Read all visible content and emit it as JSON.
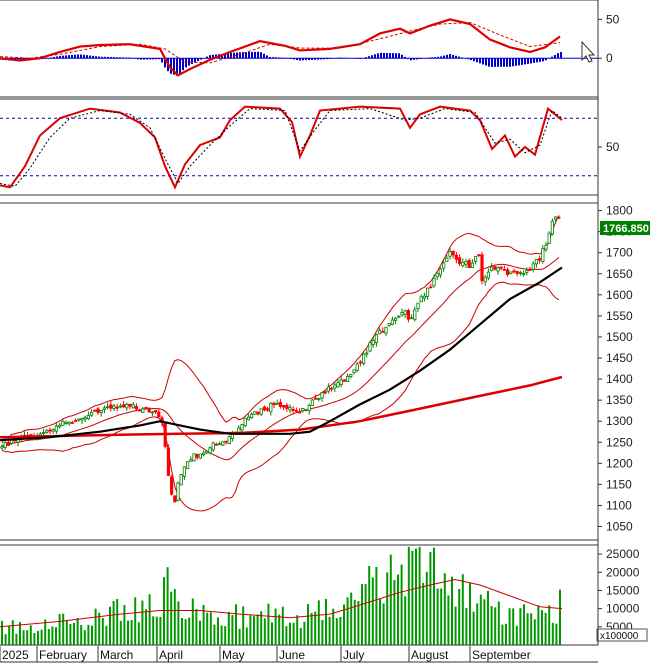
{
  "chart_data": {
    "type": "candlestick-with-indicators",
    "colors": {
      "up": "#008000",
      "down": "#ff0000",
      "ma_short": "#000000",
      "ma_long": "#dd0000",
      "band": "#cc0000",
      "macd": "#dd0000",
      "histogram": "#0000cc",
      "dashed": "#0000cc",
      "volume": "#009900",
      "label_bg": "#008000"
    },
    "x_axis": {
      "labels": [
        "2025",
        "February",
        "March",
        "April",
        "May",
        "June",
        "July",
        "August",
        "September"
      ]
    },
    "macd_panel": {
      "ticks": [
        50,
        0
      ],
      "ylim": [
        -50,
        75
      ]
    },
    "stoch_panel": {
      "ticks": [
        50
      ],
      "ylim": [
        0,
        100
      ],
      "reference_lines": [
        20,
        80
      ]
    },
    "price_panel": {
      "ticks": [
        1800,
        1750,
        1700,
        1650,
        1600,
        1550,
        1500,
        1450,
        1400,
        1350,
        1300,
        1250,
        1200,
        1150,
        1100,
        1050
      ],
      "ylim": [
        1018,
        1818
      ],
      "last_value": "1766.850",
      "anchors": [
        [
          0,
          1245
        ],
        [
          10,
          1250
        ],
        [
          20,
          1258
        ],
        [
          40,
          1270
        ],
        [
          60,
          1290
        ],
        [
          80,
          1310
        ],
        [
          95,
          1325
        ],
        [
          110,
          1335
        ],
        [
          125,
          1340
        ],
        [
          140,
          1330
        ],
        [
          155,
          1320
        ],
        [
          163,
          1300
        ],
        [
          166,
          1210
        ],
        [
          170,
          1140
        ],
        [
          175,
          1105
        ],
        [
          180,
          1175
        ],
        [
          190,
          1210
        ],
        [
          200,
          1225
        ],
        [
          210,
          1240
        ],
        [
          220,
          1250
        ],
        [
          230,
          1260
        ],
        [
          245,
          1300
        ],
        [
          260,
          1325
        ],
        [
          275,
          1340
        ],
        [
          290,
          1330
        ],
        [
          300,
          1320
        ],
        [
          310,
          1340
        ],
        [
          320,
          1360
        ],
        [
          330,
          1380
        ],
        [
          345,
          1400
        ],
        [
          360,
          1440
        ],
        [
          370,
          1480
        ],
        [
          380,
          1510
        ],
        [
          395,
          1550
        ],
        [
          405,
          1560
        ],
        [
          410,
          1540
        ],
        [
          420,
          1590
        ],
        [
          430,
          1620
        ],
        [
          440,
          1660
        ],
        [
          450,
          1700
        ],
        [
          460,
          1680
        ],
        [
          470,
          1670
        ],
        [
          478,
          1700
        ],
        [
          482,
          1640
        ],
        [
          490,
          1660
        ],
        [
          500,
          1670
        ],
        [
          510,
          1650
        ],
        [
          520,
          1650
        ],
        [
          530,
          1660
        ],
        [
          540,
          1690
        ],
        [
          548,
          1730
        ],
        [
          553,
          1780
        ],
        [
          557,
          1790
        ],
        [
          560,
          1768
        ]
      ],
      "ma_long": [
        [
          0,
          1262
        ],
        [
          60,
          1265
        ],
        [
          120,
          1268
        ],
        [
          180,
          1270
        ],
        [
          240,
          1272
        ],
        [
          300,
          1280
        ],
        [
          360,
          1300
        ],
        [
          420,
          1330
        ],
        [
          480,
          1360
        ],
        [
          530,
          1385
        ],
        [
          562,
          1405
        ]
      ],
      "ma_short": [
        [
          0,
          1255
        ],
        [
          50,
          1262
        ],
        [
          100,
          1275
        ],
        [
          140,
          1290
        ],
        [
          160,
          1300
        ],
        [
          180,
          1290
        ],
        [
          200,
          1280
        ],
        [
          230,
          1270
        ],
        [
          260,
          1270
        ],
        [
          290,
          1270
        ],
        [
          310,
          1275
        ],
        [
          330,
          1300
        ],
        [
          360,
          1340
        ],
        [
          390,
          1375
        ],
        [
          420,
          1420
        ],
        [
          450,
          1470
        ],
        [
          480,
          1530
        ],
        [
          510,
          1590
        ],
        [
          540,
          1630
        ],
        [
          562,
          1665
        ]
      ]
    },
    "volume_panel": {
      "ticks": [
        25000,
        20000,
        15000,
        10000,
        5000
      ],
      "ylim": [
        0,
        27500
      ],
      "multiplier_label": "x100000",
      "anchors": [
        [
          0,
          4500
        ],
        [
          40,
          6000
        ],
        [
          80,
          7000
        ],
        [
          120,
          9000
        ],
        [
          160,
          10000
        ],
        [
          166,
          20000
        ],
        [
          172,
          17000
        ],
        [
          180,
          12000
        ],
        [
          200,
          9000
        ],
        [
          230,
          8000
        ],
        [
          260,
          8000
        ],
        [
          290,
          7500
        ],
        [
          330,
          9000
        ],
        [
          360,
          15000
        ],
        [
          380,
          17000
        ],
        [
          400,
          21000
        ],
        [
          420,
          20000
        ],
        [
          440,
          18000
        ],
        [
          460,
          16000
        ],
        [
          480,
          11000
        ],
        [
          500,
          9500
        ],
        [
          520,
          7500
        ],
        [
          540,
          9000
        ],
        [
          560,
          11000
        ]
      ],
      "ma": [
        [
          0,
          5000
        ],
        [
          60,
          6500
        ],
        [
          120,
          8500
        ],
        [
          160,
          9500
        ],
        [
          200,
          9500
        ],
        [
          240,
          8500
        ],
        [
          290,
          7500
        ],
        [
          330,
          8500
        ],
        [
          360,
          11000
        ],
        [
          400,
          14500
        ],
        [
          430,
          16500
        ],
        [
          455,
          18000
        ],
        [
          480,
          16500
        ],
        [
          510,
          13500
        ],
        [
          540,
          10500
        ],
        [
          562,
          10000
        ]
      ]
    },
    "oscillator": {
      "macd": [
        [
          0,
          0
        ],
        [
          20,
          -3
        ],
        [
          40,
          0
        ],
        [
          60,
          8
        ],
        [
          80,
          15
        ],
        [
          100,
          17
        ],
        [
          130,
          18
        ],
        [
          160,
          12
        ],
        [
          170,
          -12
        ],
        [
          178,
          -22
        ],
        [
          190,
          -14
        ],
        [
          210,
          -2
        ],
        [
          230,
          8
        ],
        [
          260,
          22
        ],
        [
          285,
          16
        ],
        [
          300,
          10
        ],
        [
          330,
          12
        ],
        [
          360,
          18
        ],
        [
          380,
          32
        ],
        [
          400,
          38
        ],
        [
          410,
          32
        ],
        [
          430,
          42
        ],
        [
          450,
          50
        ],
        [
          470,
          44
        ],
        [
          490,
          24
        ],
        [
          510,
          14
        ],
        [
          530,
          8
        ],
        [
          545,
          14
        ],
        [
          560,
          28
        ]
      ],
      "signal": [
        [
          0,
          2
        ],
        [
          30,
          0
        ],
        [
          60,
          5
        ],
        [
          100,
          15
        ],
        [
          140,
          18
        ],
        [
          165,
          12
        ],
        [
          185,
          -5
        ],
        [
          210,
          -6
        ],
        [
          240,
          5
        ],
        [
          270,
          18
        ],
        [
          300,
          13
        ],
        [
          340,
          13
        ],
        [
          380,
          25
        ],
        [
          410,
          35
        ],
        [
          440,
          44
        ],
        [
          470,
          46
        ],
        [
          500,
          30
        ],
        [
          530,
          15
        ],
        [
          560,
          20
        ]
      ],
      "stoch_k": [
        [
          0,
          10
        ],
        [
          10,
          8
        ],
        [
          25,
          30
        ],
        [
          40,
          62
        ],
        [
          60,
          80
        ],
        [
          90,
          90
        ],
        [
          120,
          86
        ],
        [
          140,
          75
        ],
        [
          155,
          60
        ],
        [
          165,
          30
        ],
        [
          175,
          8
        ],
        [
          185,
          32
        ],
        [
          200,
          52
        ],
        [
          220,
          60
        ],
        [
          230,
          78
        ],
        [
          245,
          92
        ],
        [
          280,
          90
        ],
        [
          292,
          76
        ],
        [
          300,
          40
        ],
        [
          310,
          62
        ],
        [
          320,
          88
        ],
        [
          360,
          92
        ],
        [
          400,
          90
        ],
        [
          410,
          70
        ],
        [
          420,
          84
        ],
        [
          440,
          92
        ],
        [
          470,
          88
        ],
        [
          480,
          78
        ],
        [
          492,
          48
        ],
        [
          505,
          62
        ],
        [
          515,
          40
        ],
        [
          525,
          50
        ],
        [
          535,
          42
        ],
        [
          548,
          90
        ],
        [
          562,
          78
        ]
      ],
      "stoch_d": [
        [
          0,
          12
        ],
        [
          15,
          9
        ],
        [
          30,
          28
        ],
        [
          50,
          60
        ],
        [
          70,
          80
        ],
        [
          100,
          88
        ],
        [
          130,
          84
        ],
        [
          150,
          70
        ],
        [
          165,
          38
        ],
        [
          178,
          12
        ],
        [
          190,
          30
        ],
        [
          210,
          52
        ],
        [
          230,
          72
        ],
        [
          250,
          90
        ],
        [
          285,
          88
        ],
        [
          300,
          46
        ],
        [
          315,
          68
        ],
        [
          330,
          88
        ],
        [
          370,
          90
        ],
        [
          405,
          78
        ],
        [
          420,
          80
        ],
        [
          445,
          90
        ],
        [
          475,
          86
        ],
        [
          495,
          54
        ],
        [
          510,
          58
        ],
        [
          525,
          44
        ],
        [
          540,
          52
        ],
        [
          552,
          88
        ],
        [
          562,
          80
        ]
      ]
    }
  }
}
